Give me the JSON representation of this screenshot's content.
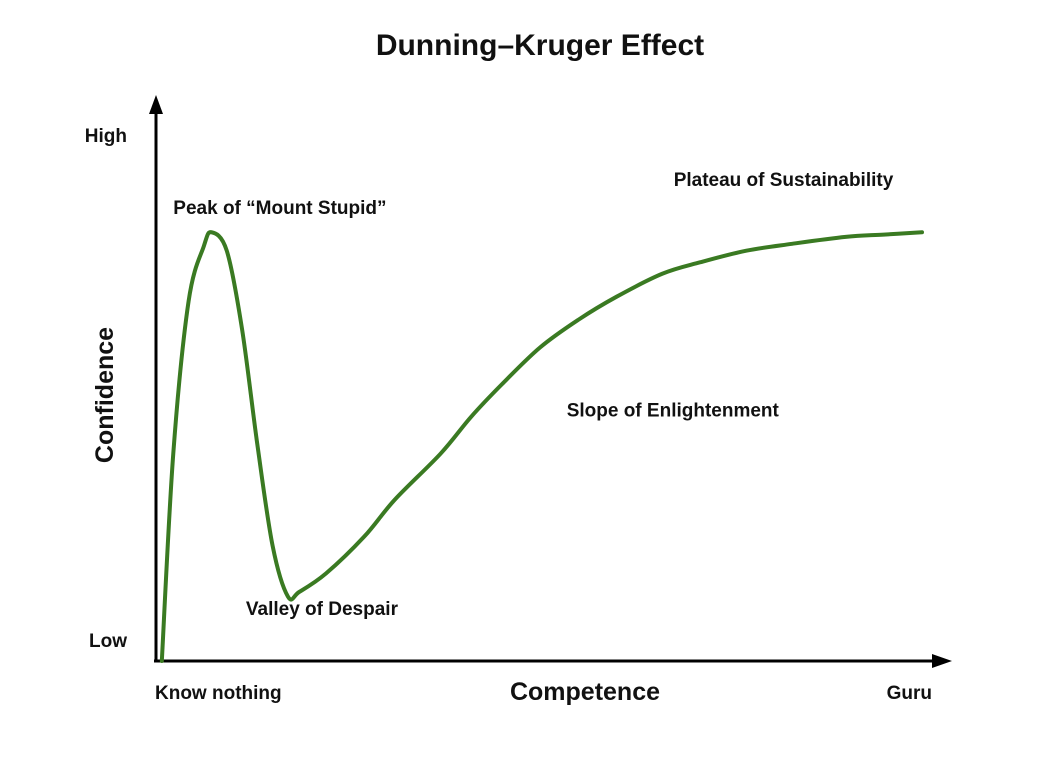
{
  "chart_data": {
    "type": "line",
    "title": "Dunning–Kruger Effect",
    "xlabel": "Competence",
    "ylabel": "Confidence",
    "x_tick_labels": {
      "start": "Know nothing",
      "end": "Guru"
    },
    "y_tick_labels": {
      "bottom": "Low",
      "top": "High"
    },
    "xlim": [
      0,
      100
    ],
    "ylim": [
      0,
      100
    ],
    "grid": false,
    "legend": "none",
    "line_color": "#3a7a22",
    "axis_color": "#000000",
    "series": [
      {
        "x": [
          0.5,
          2,
          4,
          6,
          7,
          9,
          11,
          13,
          15,
          17,
          18.5,
          22,
          27,
          31,
          37,
          41,
          45,
          50,
          55,
          60,
          66,
          71,
          77,
          83,
          90,
          95,
          100
        ],
        "y": [
          0,
          45,
          78,
          90,
          93,
          89,
          72,
          47,
          25,
          14,
          15,
          19,
          27,
          35,
          45,
          53,
          60,
          68,
          74,
          79,
          84,
          86.5,
          89,
          90.5,
          92,
          92.5,
          93
        ]
      }
    ],
    "annotations": [
      {
        "id": "peak",
        "text": "Peak of “Mount Stupid”",
        "x": 2,
        "y": 97
      },
      {
        "id": "valley",
        "text": "Valley of Despair",
        "x": 11.5,
        "y": 10
      },
      {
        "id": "slope",
        "text": "Slope of Enlightenment",
        "x": 53.5,
        "y": 53
      },
      {
        "id": "plateau",
        "text": "Plateau of Sustainability",
        "x": 67.5,
        "y": 103
      }
    ]
  }
}
